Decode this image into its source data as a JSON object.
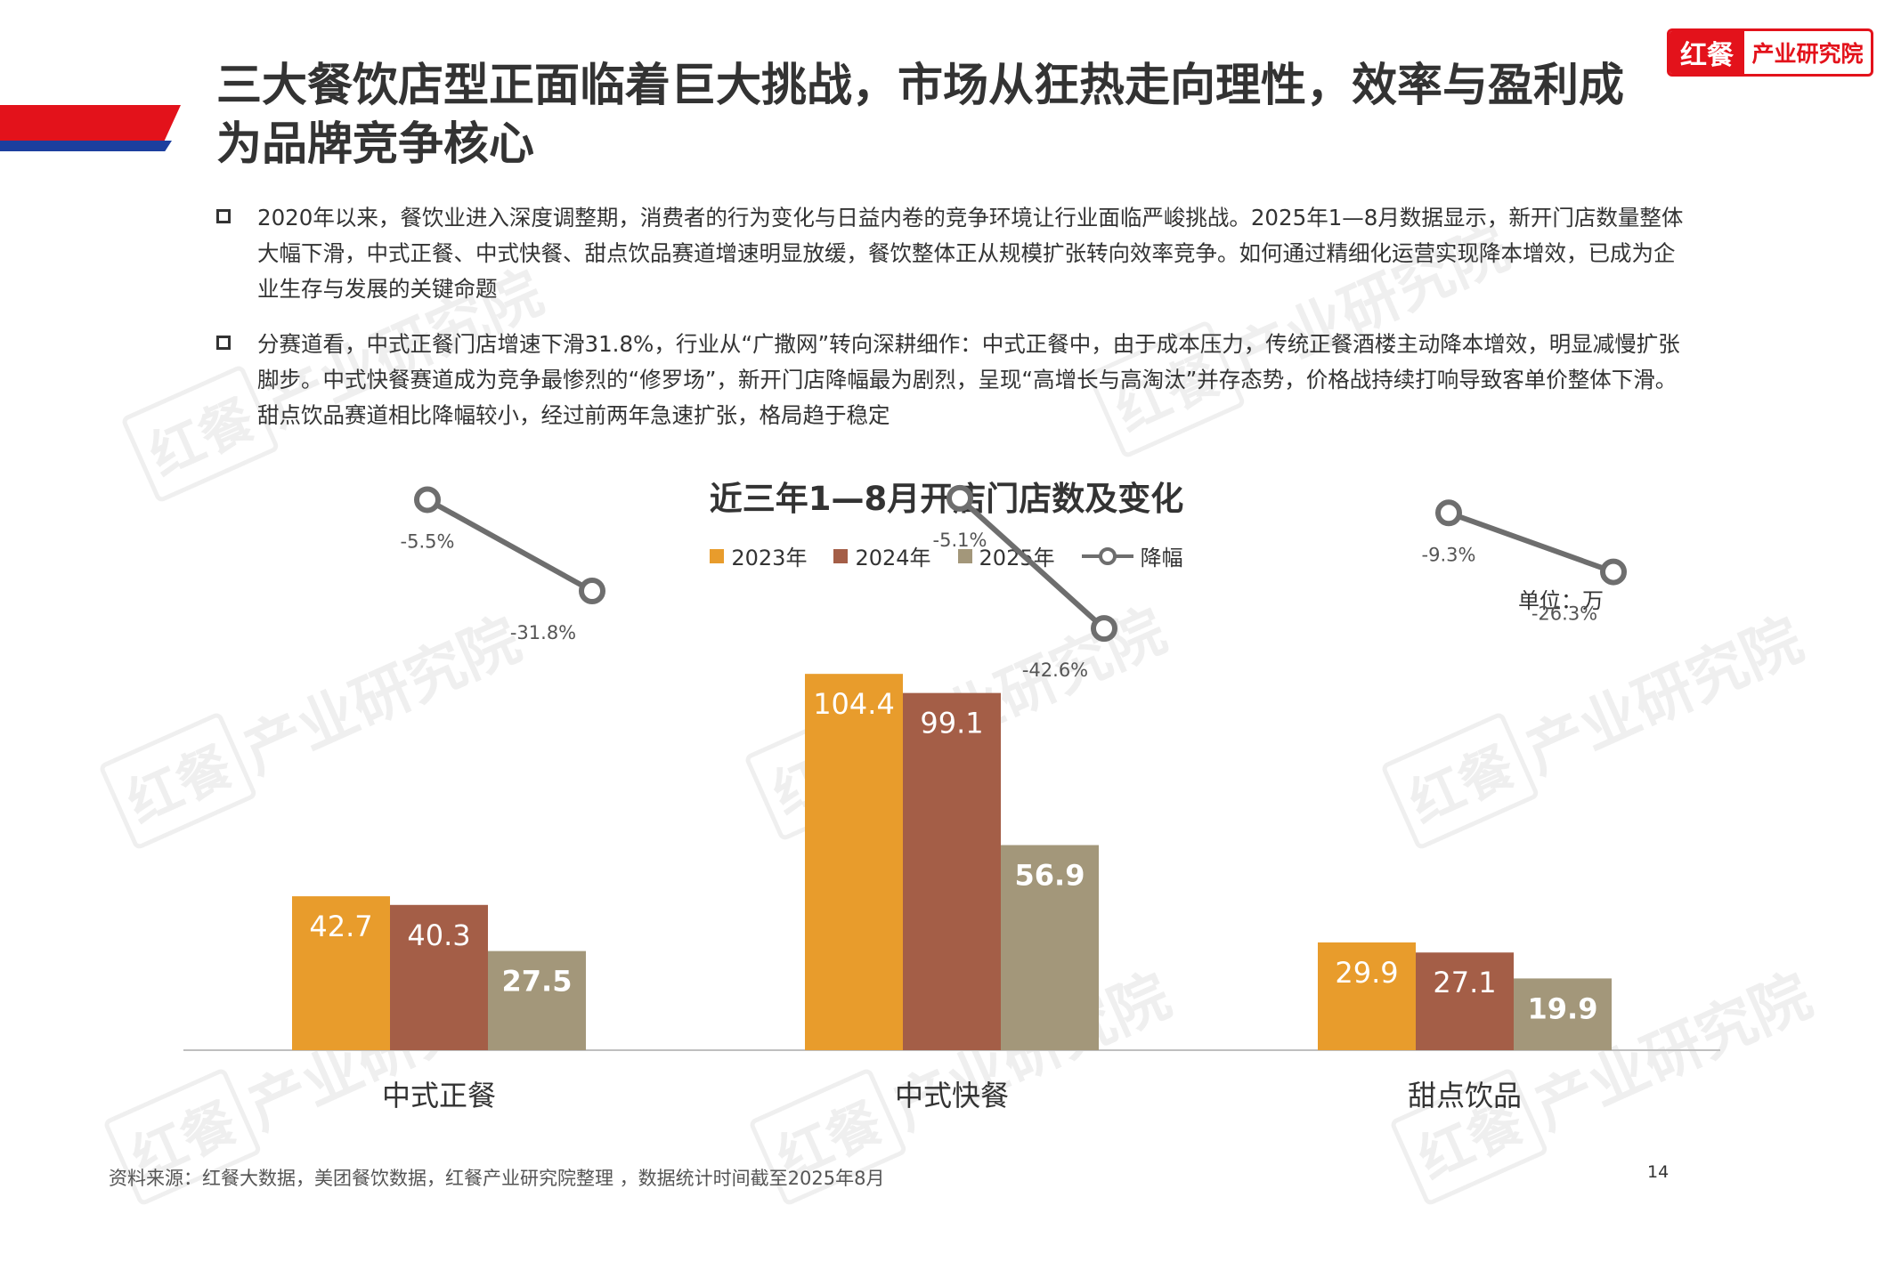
{
  "header": {
    "title": "三大餐饮店型正面临着巨大挑战，市场从狂热走向理性，效率与盈利成为品牌竞争核心",
    "logo_mark": "红餐",
    "logo_text": "产业研究院"
  },
  "bullets": [
    "2020年以来，餐饮业进入深度调整期，消费者的行为变化与日益内卷的竞争环境让行业面临严峻挑战。2025年1—8月数据显示，新开门店数量整体大幅下滑，中式正餐、中式快餐、甜点饮品赛道增速明显放缓，餐饮整体正从规模扩张转向效率竞争。如何通过精细化运营实现降本增效，已成为企业生存与发展的关键命题",
    "分赛道看，中式正餐门店增速下滑31.8%，行业从“广撒网”转向深耕细作：中式正餐中，由于成本压力，传统正餐酒楼主动降本增效，明显减慢扩张脚步。中式快餐赛道成为竞争最惨烈的“修罗场”，新开门店降幅最为剧烈，呈现“高增长与高淘汰”并存态势，价格战持续打响导致客单价整体下滑。甜点饮品赛道相比降幅较小，经过前两年急速扩张，格局趋于稳定"
  ],
  "watermark": {
    "mark": "红餐",
    "text": "产业研究院"
  },
  "chart_data": {
    "type": "bar",
    "title": "近三年1—8月开店门店数及变化",
    "unit_label": "单位：万",
    "categories": [
      "中式正餐",
      "中式快餐",
      "甜点饮品"
    ],
    "series": [
      {
        "name": "2023年",
        "color": "#e89c2c",
        "values": [
          42.7,
          104.4,
          29.9
        ],
        "labels": [
          "42.7",
          "104.4",
          "29.9"
        ]
      },
      {
        "name": "2024年",
        "color": "#a45e47",
        "values": [
          40.3,
          99.1,
          27.1
        ],
        "labels": [
          "40.3",
          "99.1",
          "27.1"
        ]
      },
      {
        "name": "2025年",
        "color": "#a3977a",
        "values": [
          27.5,
          56.9,
          19.9
        ],
        "labels": [
          "27.5",
          "56.9",
          "19.9"
        ]
      }
    ],
    "decline_series": {
      "name": "降幅",
      "color": "#6e6e6e",
      "values": [
        [
          -5.5,
          -31.8
        ],
        [
          -5.1,
          -42.6
        ],
        [
          -9.3,
          -26.3
        ]
      ],
      "labels": [
        [
          "-5.5%",
          "-31.8%"
        ],
        [
          "-5.1%",
          "-42.6%"
        ],
        [
          "-9.3%",
          "-26.3%"
        ]
      ]
    },
    "ylim": [
      0,
      120
    ],
    "legend_position": "top-center"
  },
  "footer": {
    "source": "资料来源：红餐大数据，美团餐饮数据，红餐产业研究院整理 ，数据统计时间截至2025年8月",
    "page_number": "14"
  }
}
